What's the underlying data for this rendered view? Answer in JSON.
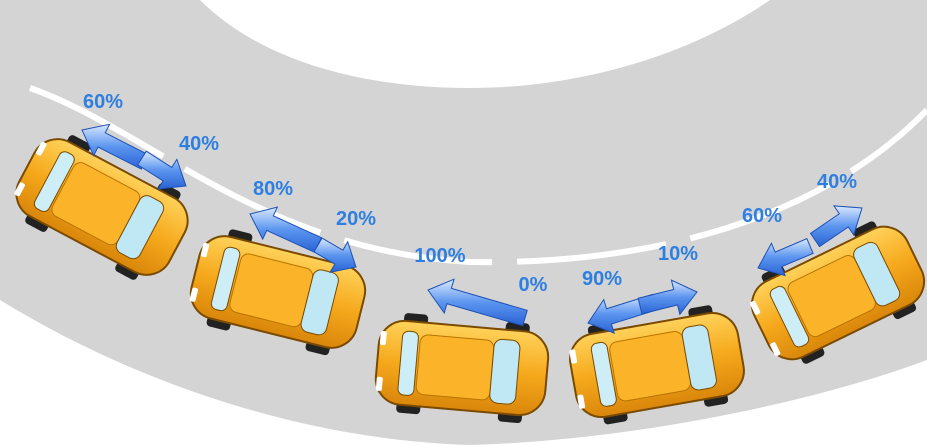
{
  "cars": [
    {
      "front": "60%",
      "rear": "40%"
    },
    {
      "front": "80%",
      "rear": "20%"
    },
    {
      "front": "100%",
      "rear": "0%"
    },
    {
      "front": "90%",
      "rear": "10%"
    },
    {
      "front": "60%",
      "rear": "40%"
    }
  ]
}
